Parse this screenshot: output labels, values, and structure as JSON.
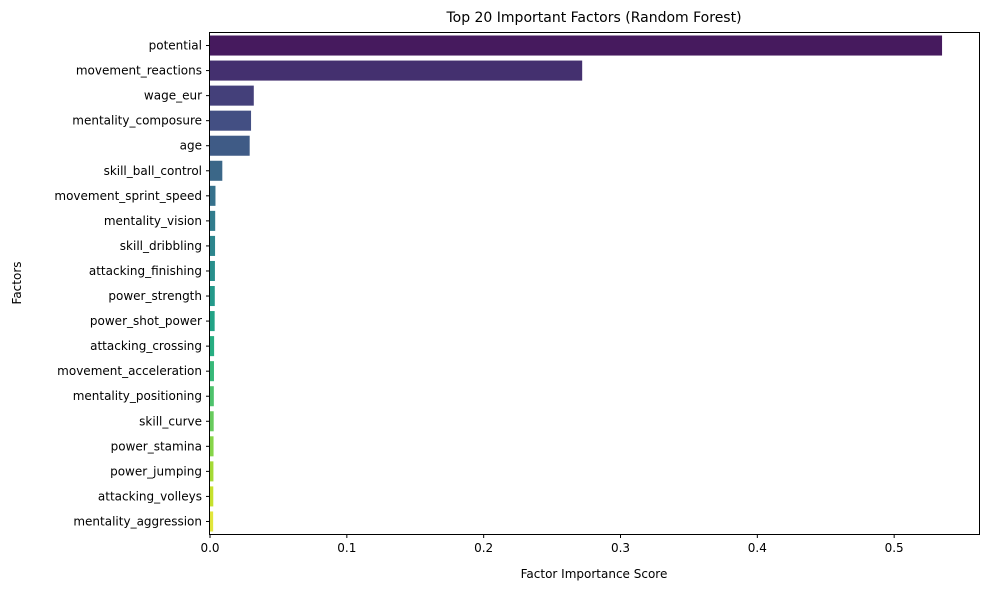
{
  "chart_data": {
    "type": "bar",
    "orientation": "horizontal",
    "title": "Top 20 Important Factors (Random Forest)",
    "xlabel": "Factor Importance Score",
    "ylabel": "Factors",
    "xlim": [
      0,
      0.562
    ],
    "xticks": [
      "0.0",
      "0.1",
      "0.2",
      "0.3",
      "0.4",
      "0.5"
    ],
    "grid": false,
    "categories": [
      "potential",
      "movement_reactions",
      "wage_eur",
      "mentality_composure",
      "age",
      "skill_ball_control",
      "movement_sprint_speed",
      "mentality_vision",
      "skill_dribbling",
      "attacking_finishing",
      "power_strength",
      "power_shot_power",
      "attacking_crossing",
      "movement_acceleration",
      "mentality_positioning",
      "skill_curve",
      "power_stamina",
      "power_jumping",
      "attacking_volleys",
      "mentality_aggression"
    ],
    "values": [
      0.535,
      0.272,
      0.032,
      0.03,
      0.029,
      0.009,
      0.004,
      0.0038,
      0.0037,
      0.0036,
      0.0035,
      0.0034,
      0.003,
      0.0029,
      0.0028,
      0.0027,
      0.0026,
      0.0025,
      0.0024,
      0.0023
    ],
    "colors": [
      "#461a5e",
      "#44306f",
      "#44407a",
      "#434f83",
      "#3f5b86",
      "#3b6788",
      "#36718c",
      "#317c8d",
      "#2c858d",
      "#288f8c",
      "#24998a",
      "#22a386",
      "#27ad81",
      "#37b878",
      "#4ec26c",
      "#68cb5d",
      "#86d549",
      "#a5da36",
      "#c6e12d",
      "#e1e63b"
    ]
  }
}
